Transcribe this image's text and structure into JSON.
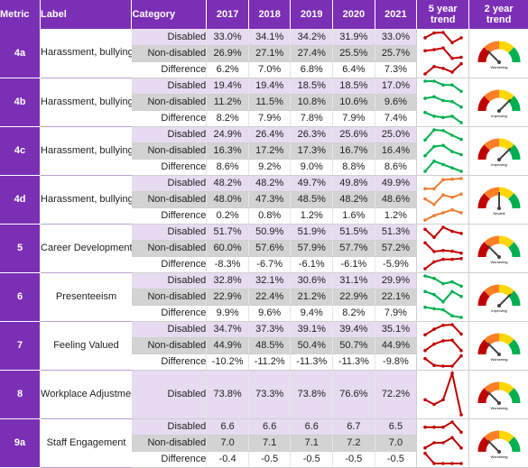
{
  "headers": {
    "metric": "Metric",
    "label": "Label",
    "category": "Category",
    "years": [
      "2017",
      "2018",
      "2019",
      "2020",
      "2021"
    ],
    "five_year": [
      "5 year",
      "trend"
    ],
    "two_year": [
      "2 year",
      "trend"
    ]
  },
  "colors": {
    "header_bg": "#7b2fb5",
    "disabled_row": "#e6dbf0",
    "nondisabled_row": "#d3d3d3",
    "line_red": "#c00000",
    "line_green": "#00b050",
    "line_orange": "#ed7d31"
  },
  "metrics": [
    {
      "id": "4a",
      "label": "Harassment, bullying or abuse Public",
      "spark_color": "red",
      "rows": [
        {
          "category": "Disabled",
          "values": [
            "33.0%",
            "34.1%",
            "34.2%",
            "31.9%",
            "33.0%"
          ]
        },
        {
          "category": "Non-disabled",
          "values": [
            "26.9%",
            "27.1%",
            "27.4%",
            "25.5%",
            "25.7%"
          ]
        },
        {
          "category": "Difference",
          "values": [
            "6.2%",
            "7.0%",
            "6.8%",
            "6.4%",
            "7.3%"
          ]
        }
      ],
      "gauge": {
        "label": "Worsening",
        "needle": 0.25
      }
    },
    {
      "id": "4b",
      "label": "Harassment, bullying or abuse Manager",
      "spark_color": "green",
      "rows": [
        {
          "category": "Disabled",
          "values": [
            "19.4%",
            "19.4%",
            "18.5%",
            "18.5%",
            "17.0%"
          ]
        },
        {
          "category": "Non-disabled",
          "values": [
            "11.2%",
            "11.5%",
            "10.8%",
            "10.6%",
            "9.6%"
          ]
        },
        {
          "category": "Difference",
          "values": [
            "8.2%",
            "7.9%",
            "7.8%",
            "7.9%",
            "7.4%"
          ]
        }
      ],
      "gauge": {
        "label": "Improving",
        "needle": 0.75
      }
    },
    {
      "id": "4c",
      "label": "Harassment, bullying or abuse Colleagues",
      "spark_color": "green",
      "rows": [
        {
          "category": "Disabled",
          "values": [
            "24.9%",
            "26.4%",
            "26.3%",
            "25.6%",
            "25.0%"
          ]
        },
        {
          "category": "Non-disabled",
          "values": [
            "16.3%",
            "17.2%",
            "17.3%",
            "16.7%",
            "16.4%"
          ]
        },
        {
          "category": "Difference",
          "values": [
            "8.6%",
            "9.2%",
            "9.0%",
            "8.8%",
            "8.6%"
          ]
        }
      ],
      "gauge": {
        "label": "Improving",
        "needle": 0.75
      }
    },
    {
      "id": "4d",
      "label": "Harassment, bullying or abuse Reporting",
      "spark_color": "orange",
      "rows": [
        {
          "category": "Disabled",
          "values": [
            "48.2%",
            "48.2%",
            "49.7%",
            "49.8%",
            "49.9%"
          ]
        },
        {
          "category": "Non-disabled",
          "values": [
            "48.0%",
            "47.3%",
            "48.5%",
            "48.2%",
            "48.6%"
          ]
        },
        {
          "category": "Difference",
          "values": [
            "0.2%",
            "0.8%",
            "1.2%",
            "1.6%",
            "1.2%"
          ]
        }
      ],
      "gauge": {
        "label": "Neutral",
        "needle": 0.5
      }
    },
    {
      "id": "5",
      "label": "Career Development",
      "spark_color": "red",
      "rows": [
        {
          "category": "Disabled",
          "values": [
            "51.7%",
            "50.9%",
            "51.9%",
            "51.5%",
            "51.3%"
          ]
        },
        {
          "category": "Non-disabled",
          "values": [
            "60.0%",
            "57.6%",
            "57.9%",
            "57.7%",
            "57.2%"
          ]
        },
        {
          "category": "Difference",
          "values": [
            "-8.3%",
            "-6.7%",
            "-6.1%",
            "-6.1%",
            "-5.9%"
          ]
        }
      ],
      "gauge": {
        "label": "Worsening",
        "needle": 0.25
      }
    },
    {
      "id": "6",
      "label": "Presenteeism",
      "spark_color": "green",
      "rows": [
        {
          "category": "Disabled",
          "values": [
            "32.8%",
            "32.1%",
            "30.6%",
            "31.1%",
            "29.9%"
          ]
        },
        {
          "category": "Non-disabled",
          "values": [
            "22.9%",
            "22.4%",
            "21.2%",
            "22.9%",
            "22.1%"
          ]
        },
        {
          "category": "Difference",
          "values": [
            "9.9%",
            "9.6%",
            "9.4%",
            "8.2%",
            "7.9%"
          ]
        }
      ],
      "gauge": {
        "label": "Improving",
        "needle": 0.75
      }
    },
    {
      "id": "7",
      "label": "Feeling Valued",
      "spark_color": "red",
      "rows": [
        {
          "category": "Disabled",
          "values": [
            "34.7%",
            "37.3%",
            "39.1%",
            "39.4%",
            "35.1%"
          ]
        },
        {
          "category": "Non-disabled",
          "values": [
            "44.9%",
            "48.5%",
            "50.4%",
            "50.7%",
            "44.9%"
          ]
        },
        {
          "category": "Difference",
          "values": [
            "-10.2%",
            "-11.2%",
            "-11.3%",
            "-11.3%",
            "-9.8%"
          ]
        }
      ],
      "gauge": {
        "label": "Worsening",
        "needle": 0.25
      }
    },
    {
      "id": "8",
      "label": "Workplace Adjustments",
      "spark_color": "red",
      "rows": [
        {
          "category": "Disabled",
          "values": [
            "73.8%",
            "73.3%",
            "73.8%",
            "76.6%",
            "72.2%"
          ]
        }
      ],
      "gauge": {
        "label": "Worsening",
        "needle": 0.25
      }
    },
    {
      "id": "9a",
      "label": "Staff Engagement",
      "spark_color": "red",
      "rows": [
        {
          "category": "Disabled",
          "values": [
            "6.6",
            "6.6",
            "6.6",
            "6.7",
            "6.5"
          ]
        },
        {
          "category": "Non-disabled",
          "values": [
            "7.0",
            "7.1",
            "7.1",
            "7.2",
            "7.0"
          ]
        },
        {
          "category": "Difference",
          "values": [
            "-0.4",
            "-0.5",
            "-0.5",
            "-0.5",
            "-0.5"
          ]
        }
      ],
      "gauge": {
        "label": "Worsening",
        "needle": 0.25
      }
    }
  ]
}
